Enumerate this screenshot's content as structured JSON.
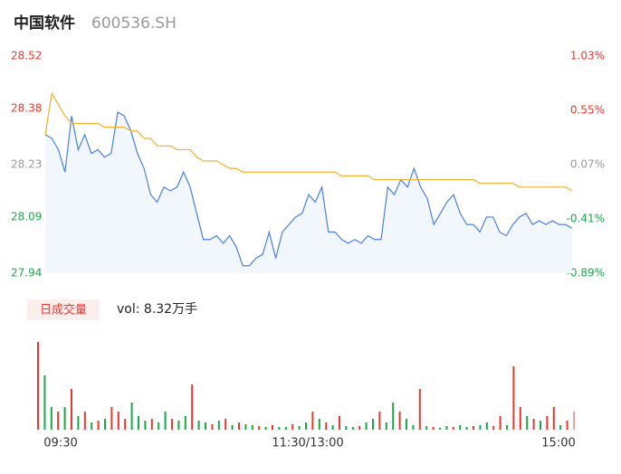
{
  "chart_data": {
    "type": "line",
    "title": "中国软件",
    "subtitle": "600536.SH",
    "x": [
      0,
      3,
      6,
      9,
      12,
      15,
      18,
      21,
      24,
      27,
      30,
      33,
      36,
      39,
      42,
      45,
      48,
      51,
      54,
      57,
      60,
      63,
      66,
      69,
      72,
      75,
      78,
      81,
      84,
      87,
      90,
      93,
      96,
      99,
      102,
      105,
      108,
      111,
      114,
      117,
      120,
      123,
      126,
      129,
      132,
      135,
      138,
      141,
      144,
      147,
      150,
      153,
      156,
      159,
      162,
      165,
      168,
      171,
      174,
      177,
      180,
      183,
      186,
      189,
      192,
      195,
      198,
      201,
      204,
      207,
      210,
      213,
      216,
      219,
      222,
      225,
      228,
      231,
      234,
      237,
      240
    ],
    "xlim": [
      0,
      240
    ],
    "xticks": [
      {
        "value": 0,
        "label": "09:30"
      },
      {
        "value": 120,
        "label": "11:30/13:00"
      },
      {
        "value": 240,
        "label": "15:00"
      }
    ],
    "series": [
      {
        "color": "#4a7fe0",
        "values": [
          28.31,
          28.3,
          28.27,
          28.21,
          28.36,
          28.27,
          28.31,
          28.26,
          28.27,
          28.25,
          28.26,
          28.37,
          28.36,
          28.32,
          28.26,
          28.22,
          28.15,
          28.13,
          28.17,
          28.16,
          28.17,
          28.21,
          28.17,
          28.1,
          28.03,
          28.03,
          28.04,
          28.02,
          28.04,
          28.01,
          27.96,
          27.96,
          27.98,
          27.99,
          28.05,
          27.98,
          28.05,
          28.07,
          28.09,
          28.1,
          28.15,
          28.13,
          28.17,
          28.05,
          28.05,
          28.03,
          28.02,
          28.03,
          28.02,
          28.04,
          28.03,
          28.03,
          28.17,
          28.15,
          28.19,
          28.17,
          28.22,
          28.17,
          28.14,
          28.07,
          28.1,
          28.13,
          28.15,
          28.1,
          28.07,
          28.07,
          28.05,
          28.09,
          28.09,
          28.05,
          28.04,
          28.07,
          28.09,
          28.1,
          28.07,
          28.08,
          28.07,
          28.08,
          28.07,
          28.07,
          28.06
        ]
      },
      {
        "color": "#f0b030",
        "values": [
          28.31,
          28.42,
          28.39,
          28.36,
          28.34,
          28.34,
          28.34,
          28.34,
          28.34,
          28.33,
          28.33,
          28.33,
          28.33,
          28.32,
          28.32,
          28.3,
          28.3,
          28.28,
          28.28,
          28.28,
          28.27,
          28.27,
          28.27,
          28.25,
          28.24,
          28.24,
          28.24,
          28.23,
          28.22,
          28.22,
          28.21,
          28.21,
          28.21,
          28.21,
          28.21,
          28.21,
          28.21,
          28.21,
          28.21,
          28.21,
          28.21,
          28.21,
          28.21,
          28.21,
          28.21,
          28.2,
          28.2,
          28.2,
          28.2,
          28.2,
          28.19,
          28.19,
          28.19,
          28.19,
          28.19,
          28.19,
          28.19,
          28.19,
          28.19,
          28.19,
          28.19,
          28.19,
          28.19,
          28.19,
          28.19,
          28.19,
          28.18,
          28.18,
          28.18,
          28.18,
          28.18,
          28.18,
          28.17,
          28.17,
          28.17,
          28.17,
          28.17,
          28.17,
          28.17,
          28.17,
          28.16
        ]
      }
    ],
    "ylim": [
      27.94,
      28.52
    ],
    "yticks": [
      27.94,
      28.09,
      28.23,
      28.38,
      28.52
    ],
    "ytick_colors": [
      "#1aa84a",
      "#1aa84a",
      "#999999",
      "#e8382f",
      "#e8382f"
    ],
    "y2lim": [
      -0.89,
      1.03
    ],
    "y2ticks": [
      {
        "value": -0.89,
        "label": "-0.89%"
      },
      {
        "value": -0.41,
        "label": "-0.41%"
      },
      {
        "value": 0.07,
        "label": "0.07%"
      },
      {
        "value": 0.55,
        "label": "0.55%"
      },
      {
        "value": 1.03,
        "label": "1.03%"
      }
    ],
    "y2tick_colors": [
      "#1aa84a",
      "#1aa84a",
      "#999999",
      "#e8382f",
      "#e8382f"
    ],
    "area_color": "#f2f6fd",
    "volume": {
      "tab": "日成交量",
      "summary": "vol: 8.32万手",
      "ylim": [
        0,
        1940
      ],
      "values": [
        1940,
        1200,
        500,
        400,
        500,
        900,
        300,
        400,
        160,
        200,
        240,
        500,
        400,
        240,
        600,
        300,
        200,
        240,
        160,
        400,
        240,
        200,
        300,
        1000,
        200,
        160,
        120,
        200,
        240,
        100,
        160,
        120,
        100,
        80,
        60,
        100,
        60,
        60,
        120,
        80,
        160,
        400,
        240,
        160,
        100,
        300,
        80,
        60,
        80,
        160,
        240,
        400,
        160,
        600,
        400,
        240,
        100,
        900,
        80,
        60,
        40,
        80,
        60,
        100,
        60,
        80,
        100,
        160,
        80,
        300,
        100,
        1400,
        500,
        300,
        240,
        200,
        300,
        500,
        100,
        200,
        400
      ],
      "colors": [
        "#e8382f",
        "#1aa84a",
        "#1aa84a",
        "#e8382f",
        "#1aa84a",
        "#e8382f",
        "#1aa84a",
        "#e8382f",
        "#1aa84a",
        "#e8382f",
        "#1aa84a",
        "#e8382f",
        "#e8382f",
        "#e8382f",
        "#1aa84a",
        "#1aa84a",
        "#1aa84a",
        "#e8382f",
        "#1aa84a",
        "#1aa84a",
        "#e8382f",
        "#1aa84a",
        "#1aa84a",
        "#e8382f",
        "#1aa84a",
        "#1aa84a",
        "#e8382f",
        "#1aa84a",
        "#e8382f",
        "#1aa84a",
        "#e8382f",
        "#1aa84a",
        "#1aa84a",
        "#e8382f",
        "#1aa84a",
        "#e8382f",
        "#1aa84a",
        "#1aa84a",
        "#e8382f",
        "#1aa84a",
        "#1aa84a",
        "#e8382f",
        "#1aa84a",
        "#e8382f",
        "#1aa84a",
        "#e8382f",
        "#1aa84a",
        "#1aa84a",
        "#e8382f",
        "#1aa84a",
        "#1aa84a",
        "#e8382f",
        "#1aa84a",
        "#1aa84a",
        "#e8382f",
        "#1aa84a",
        "#1aa84a",
        "#e8382f",
        "#1aa84a",
        "#e8382f",
        "#1aa84a",
        "#1aa84a",
        "#e8382f",
        "#1aa84a",
        "#1aa84a",
        "#e8382f",
        "#1aa84a",
        "#1aa84a",
        "#e8382f",
        "#e8382f",
        "#1aa84a",
        "#e8382f",
        "#e8382f",
        "#1aa84a",
        "#e8382f",
        "#1aa84a",
        "#e8382f",
        "#e8382f",
        "#1aa84a",
        "#e8382f",
        "#f4a0a0"
      ]
    }
  }
}
